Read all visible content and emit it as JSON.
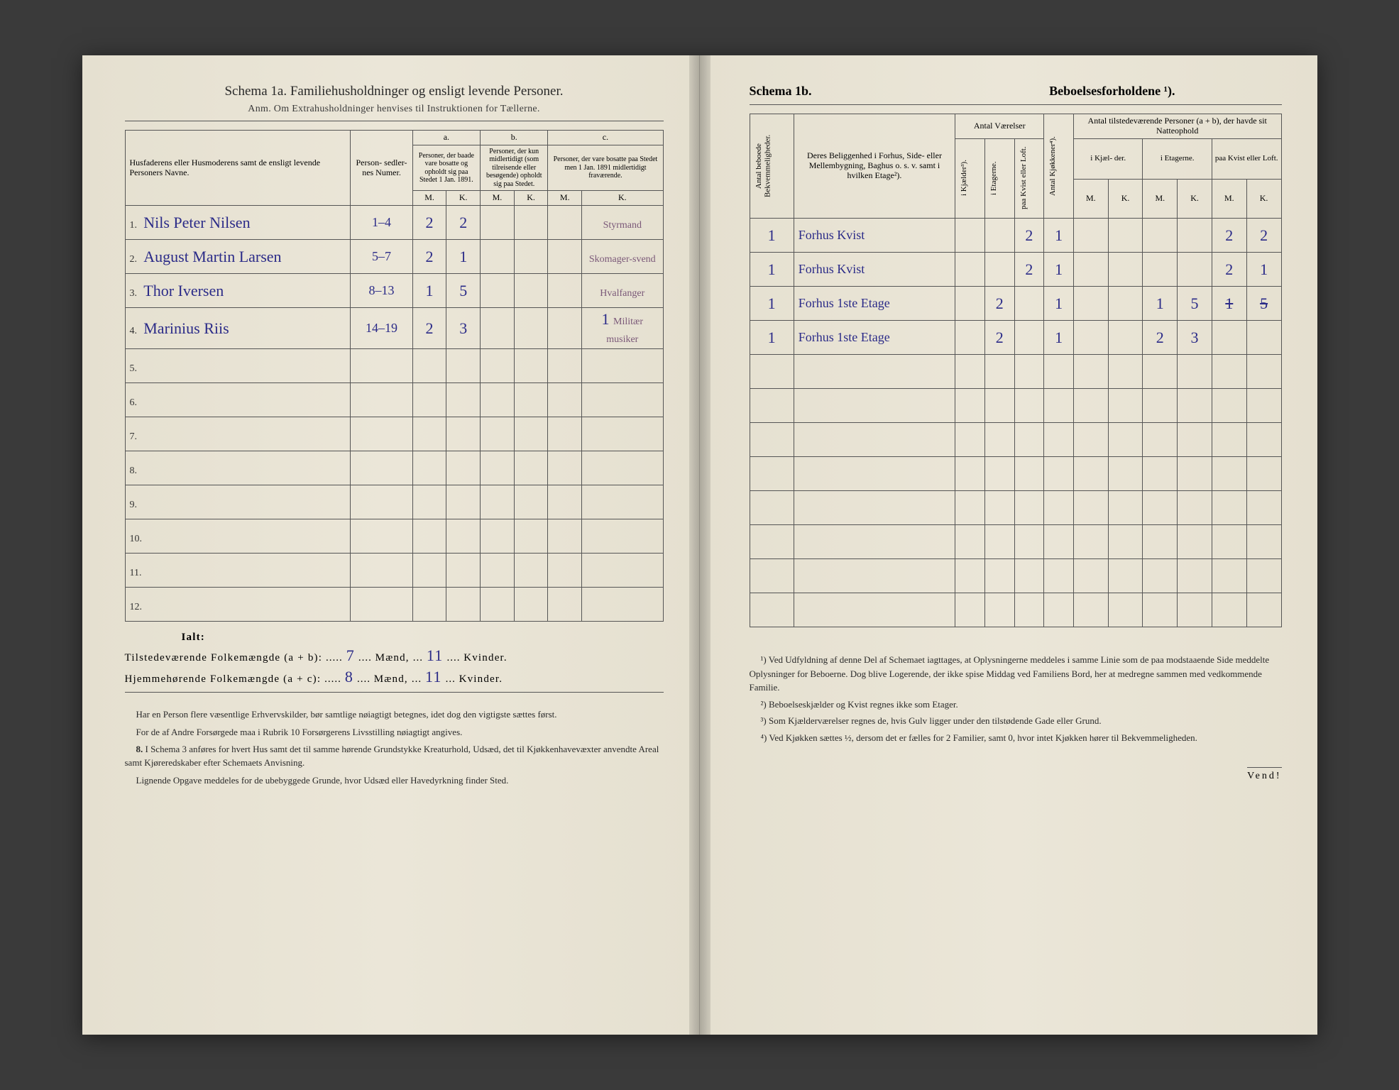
{
  "left": {
    "title": "Schema 1a.   Familiehusholdninger og ensligt levende Personer.",
    "subtitle": "Anm. Om Extrahusholdninger henvises til Instruktionen for Tællerne.",
    "col_name": "Husfaderens eller Husmoderens samt de ensligt levende Personers Navne.",
    "col_person": "Person-\nsedler-\nnes\nNumer.",
    "group_a": "a.",
    "group_a_text": "Personer, der baade vare bosatte og opholdt sig paa Stedet 1 Jan. 1891.",
    "group_b": "b.",
    "group_b_text": "Personer, der kun midlertidigt (som tilreisende eller besøgende) opholdt sig paa Stedet.",
    "group_c": "c.",
    "group_c_text": "Personer, der vare bosatte paa Stedet men 1 Jan. 1891 midlertidigt fraværende.",
    "mk_m": "M.",
    "mk_k": "K.",
    "rows": [
      {
        "n": "1.",
        "name": "Nils Peter Nilsen",
        "person": "1–4",
        "aM": "2",
        "aK": "2",
        "bM": "",
        "bK": "",
        "cM": "",
        "cK": "",
        "note": "Styrmand"
      },
      {
        "n": "2.",
        "name": "August Martin Larsen",
        "person": "5–7",
        "aM": "2",
        "aK": "1",
        "bM": "",
        "bK": "",
        "cM": "",
        "cK": "",
        "note": "Skomager-svend"
      },
      {
        "n": "3.",
        "name": "Thor Iversen",
        "person": "8–13",
        "aM": "1",
        "aK": "5",
        "bM": "",
        "bK": "",
        "cM": "",
        "cK": "",
        "note": "Hvalfanger"
      },
      {
        "n": "4.",
        "name": "Marinius Riis",
        "person": "14–19",
        "aM": "2",
        "aK": "3",
        "bM": "",
        "bK": "",
        "cM": "",
        "cK": "1",
        "note": "Militær musiker"
      },
      {
        "n": "5.",
        "name": "",
        "person": "",
        "aM": "",
        "aK": "",
        "bM": "",
        "bK": "",
        "cM": "",
        "cK": "",
        "note": ""
      },
      {
        "n": "6.",
        "name": "",
        "person": "",
        "aM": "",
        "aK": "",
        "bM": "",
        "bK": "",
        "cM": "",
        "cK": "",
        "note": ""
      },
      {
        "n": "7.",
        "name": "",
        "person": "",
        "aM": "",
        "aK": "",
        "bM": "",
        "bK": "",
        "cM": "",
        "cK": "",
        "note": ""
      },
      {
        "n": "8.",
        "name": "",
        "person": "",
        "aM": "",
        "aK": "",
        "bM": "",
        "bK": "",
        "cM": "",
        "cK": "",
        "note": ""
      },
      {
        "n": "9.",
        "name": "",
        "person": "",
        "aM": "",
        "aK": "",
        "bM": "",
        "bK": "",
        "cM": "",
        "cK": "",
        "note": ""
      },
      {
        "n": "10.",
        "name": "",
        "person": "",
        "aM": "",
        "aK": "",
        "bM": "",
        "bK": "",
        "cM": "",
        "cK": "",
        "note": ""
      },
      {
        "n": "11.",
        "name": "",
        "person": "",
        "aM": "",
        "aK": "",
        "bM": "",
        "bK": "",
        "cM": "",
        "cK": "",
        "note": ""
      },
      {
        "n": "12.",
        "name": "",
        "person": "",
        "aM": "",
        "aK": "",
        "bM": "",
        "bK": "",
        "cM": "",
        "cK": "",
        "note": ""
      }
    ],
    "ialt": "Ialt:",
    "sum1_label": "Tilstedeværende Folkemængde (a + b):",
    "sum1_m": "7",
    "sum1_maend": "Mænd,",
    "sum1_k": "11",
    "sum1_kv": "Kvinder.",
    "sum2_label": "Hjemmehørende Folkemængde (a + c):",
    "sum2_m": "8",
    "sum2_k": "11",
    "para1": "Har en Person flere væsentlige Erhvervskilder, bør samtlige nøiagtigt betegnes, idet dog den vigtigste sættes først.",
    "para2": "For de af Andre Forsørgede maa i Rubrik 10 Forsørgerens Livsstilling nøiagtigt angives.",
    "para3_num": "8.",
    "para3": "I Schema 3 anføres for hvert Hus samt det til samme hørende Grundstykke Kreaturhold, Udsæd, det til Kjøkkenhavevæxter anvendte Areal samt Kjøreredskaber efter Schemaets Anvisning.",
    "para4": "Lignende Opgave meddeles for de ubebyggede Grunde, hvor Udsæd eller Havedyrkning finder Sted."
  },
  "right": {
    "title_a": "Schema 1b.",
    "title_b": "Beboelsesforholdene ¹).",
    "col_antal_bek": "Antal beboede\nBekvemmeligheder.",
    "col_belig": "Deres Beliggenhed i Forhus, Side- eller Mellembygning, Baghus o. s. v. samt i hvilken Etage²).",
    "col_vaer": "Antal\nVærelser",
    "col_vaer_sub1": "i Kjælder³).",
    "col_vaer_sub2": "i Etagerne.",
    "col_vaer_sub3": "paa Kvist eller\nLoft.",
    "col_kjok": "Antal Kjøkkener⁴).",
    "col_natte": "Antal tilstedeværende Personer (a + b), der havde sit Natteophold",
    "col_natte_sub1": "i Kjæl-\nder.",
    "col_natte_sub2": "i\nEtagerne.",
    "col_natte_sub3": "paa\nKvist\neller\nLoft.",
    "rows": [
      {
        "bek": "1",
        "belig": "Forhus Kvist",
        "kj": "",
        "et": "",
        "kv": "2",
        "kjok": "1",
        "nM1": "",
        "nK1": "",
        "nM2": "",
        "nK2": "",
        "nM3": "2",
        "nK3": "2"
      },
      {
        "bek": "1",
        "belig": "Forhus Kvist",
        "kj": "",
        "et": "",
        "kv": "2",
        "kjok": "1",
        "nM1": "",
        "nK1": "",
        "nM2": "",
        "nK2": "",
        "nM3": "2",
        "nK3": "1"
      },
      {
        "bek": "1",
        "belig": "Forhus 1ste Etage",
        "kj": "",
        "et": "2",
        "kv": "",
        "kjok": "1",
        "nM1": "",
        "nK1": "",
        "nM2": "1",
        "nK2": "5",
        "nM3": "1",
        "nK3": "5",
        "strike3": true
      },
      {
        "bek": "1",
        "belig": "Forhus 1ste Etage",
        "kj": "",
        "et": "2",
        "kv": "",
        "kjok": "1",
        "nM1": "",
        "nK1": "",
        "nM2": "2",
        "nK2": "3",
        "nM3": "",
        "nK3": ""
      },
      {
        "bek": "",
        "belig": "",
        "kj": "",
        "et": "",
        "kv": "",
        "kjok": "",
        "nM1": "",
        "nK1": "",
        "nM2": "",
        "nK2": "",
        "nM3": "",
        "nK3": ""
      },
      {
        "bek": "",
        "belig": "",
        "kj": "",
        "et": "",
        "kv": "",
        "kjok": "",
        "nM1": "",
        "nK1": "",
        "nM2": "",
        "nK2": "",
        "nM3": "",
        "nK3": ""
      },
      {
        "bek": "",
        "belig": "",
        "kj": "",
        "et": "",
        "kv": "",
        "kjok": "",
        "nM1": "",
        "nK1": "",
        "nM2": "",
        "nK2": "",
        "nM3": "",
        "nK3": ""
      },
      {
        "bek": "",
        "belig": "",
        "kj": "",
        "et": "",
        "kv": "",
        "kjok": "",
        "nM1": "",
        "nK1": "",
        "nM2": "",
        "nK2": "",
        "nM3": "",
        "nK3": ""
      },
      {
        "bek": "",
        "belig": "",
        "kj": "",
        "et": "",
        "kv": "",
        "kjok": "",
        "nM1": "",
        "nK1": "",
        "nM2": "",
        "nK2": "",
        "nM3": "",
        "nK3": ""
      },
      {
        "bek": "",
        "belig": "",
        "kj": "",
        "et": "",
        "kv": "",
        "kjok": "",
        "nM1": "",
        "nK1": "",
        "nM2": "",
        "nK2": "",
        "nM3": "",
        "nK3": ""
      },
      {
        "bek": "",
        "belig": "",
        "kj": "",
        "et": "",
        "kv": "",
        "kjok": "",
        "nM1": "",
        "nK1": "",
        "nM2": "",
        "nK2": "",
        "nM3": "",
        "nK3": ""
      },
      {
        "bek": "",
        "belig": "",
        "kj": "",
        "et": "",
        "kv": "",
        "kjok": "",
        "nM1": "",
        "nK1": "",
        "nM2": "",
        "nK2": "",
        "nM3": "",
        "nK3": ""
      }
    ],
    "fn1": "¹) Ved Udfyldning af denne Del af Schemaet iagttages, at Oplysningerne meddeles i samme Linie som de paa modstaaende Side meddelte Oplysninger for Beboerne. Dog blive Logerende, der ikke spise Middag ved Familiens Bord, her at medregne sammen med vedkommende Familie.",
    "fn2": "²) Beboelseskjælder og Kvist regnes ikke som Etager.",
    "fn3": "³) Som Kjælderværelser regnes de, hvis Gulv ligger under den tilstødende Gade eller Grund.",
    "fn4": "⁴) Ved Kjøkken sættes ½, dersom det er fælles for 2 Familier, samt 0, hvor intet Kjøkken hører til Bekvemmeligheden.",
    "vend": "Vend!"
  }
}
